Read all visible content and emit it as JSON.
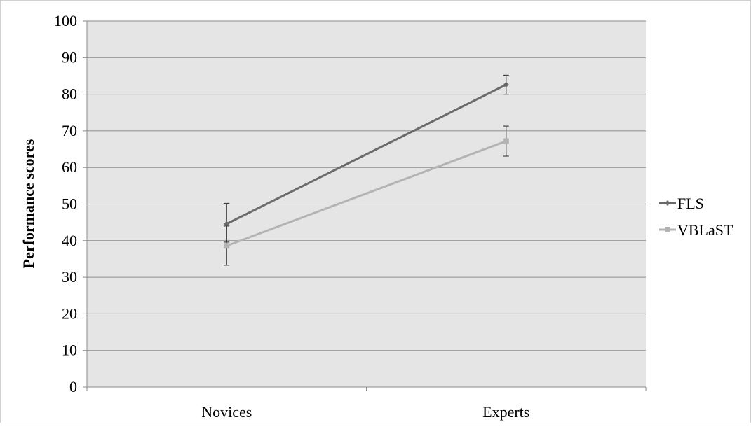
{
  "chart_data": {
    "type": "line",
    "title": "",
    "xlabel": "",
    "ylabel": "Performance scores",
    "categories": [
      "Novices",
      "Experts"
    ],
    "ylim": [
      0,
      100
    ],
    "yticks": [
      "0",
      "10",
      "20",
      "30",
      "40",
      "50",
      "60",
      "70",
      "80",
      "90",
      "100"
    ],
    "grid": true,
    "legend_position": "right",
    "error_bars": true,
    "series": [
      {
        "name": "FLS",
        "values": [
          44.6,
          82.6
        ],
        "error_low": [
          39.6,
          80.0
        ],
        "error_high": [
          50.2,
          85.2
        ],
        "color": "#6b6b6b",
        "marker": "diamond"
      },
      {
        "name": "VBLaST",
        "values": [
          38.6,
          67.2
        ],
        "error_low": [
          33.3,
          63.1
        ],
        "error_high": [
          44.0,
          71.3
        ],
        "color": "#b3b3b3",
        "marker": "square"
      }
    ],
    "colors": {
      "plot_background": "#e5e5e5",
      "gridline": "#8c8c8c",
      "axis": "#8c8c8c",
      "error_bar": "#404040"
    }
  }
}
